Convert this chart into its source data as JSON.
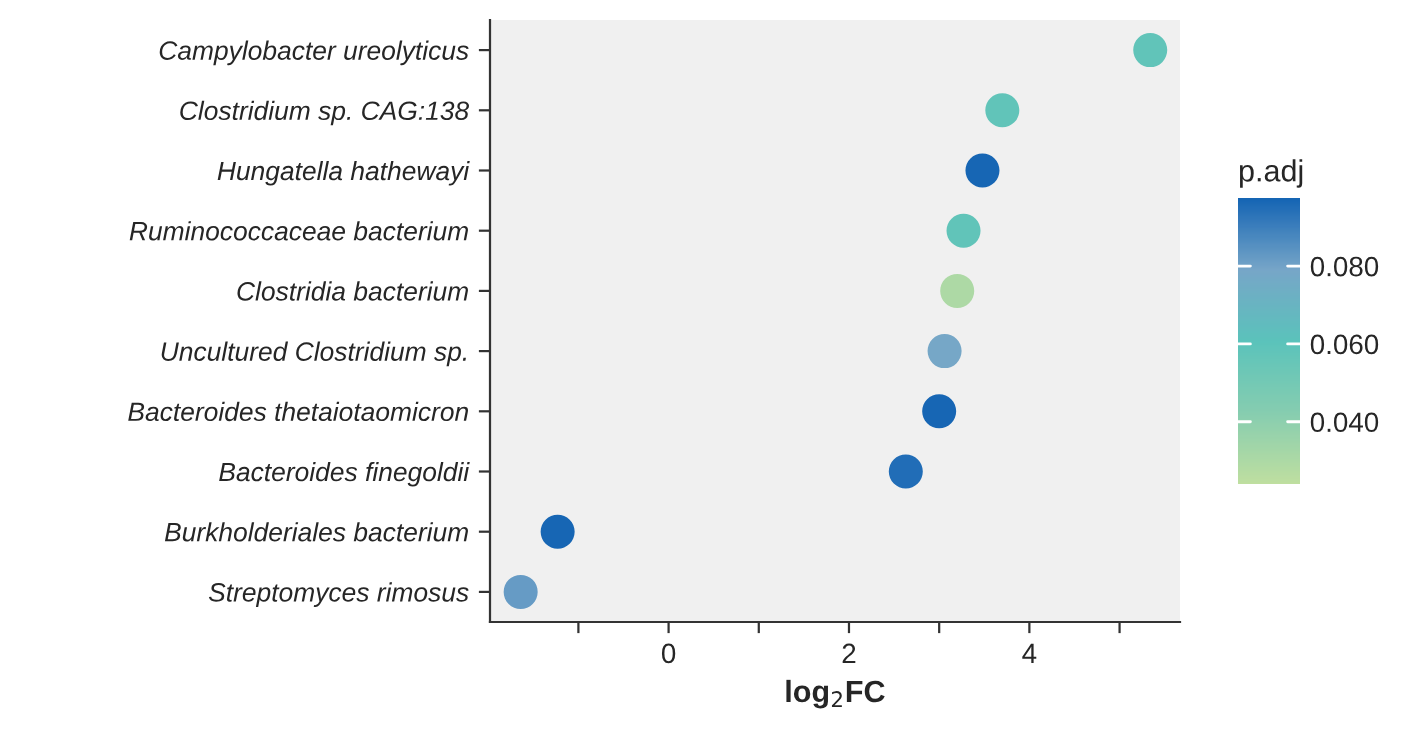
{
  "chart_data": {
    "type": "scatter",
    "xlabel": "log$_{2}$FC",
    "clabel": "p.adj",
    "categories": [
      "Campylobacter ureolyticus",
      "Clostridium sp. CAG:138",
      "Hungatella hathewayi",
      "Ruminococcaceae bacterium",
      "Clostridia bacterium",
      "Uncultured Clostridium sp.",
      "Bacteroides thetaiotaomicron",
      "Bacteroides finegoldii",
      "Burkholderiales bacterium",
      "Streptomyces rimosus"
    ],
    "orientation": "horizontal",
    "values": [
      5.34,
      3.7,
      3.48,
      3.27,
      3.2,
      3.06,
      3.0,
      2.63,
      -1.23,
      -1.64
    ],
    "cvalues": [
      0.058,
      0.058,
      0.097,
      0.058,
      0.03,
      0.078,
      0.097,
      0.095,
      0.097,
      0.082
    ],
    "clim": [
      0.024,
      0.0975
    ],
    "cticks": [
      {
        "value": 0.04,
        "label": "0.040"
      },
      {
        "value": 0.06,
        "label": "0.060"
      },
      {
        "value": 0.08,
        "label": "0.080"
      }
    ],
    "xlim": [
      -1.98,
      5.67
    ],
    "xticks": [
      {
        "value": -1,
        "label": null
      },
      0,
      {
        "value": 1,
        "label": null
      },
      2,
      {
        "value": 3,
        "label": null
      },
      4,
      {
        "value": 5,
        "label": null
      }
    ],
    "grid": false,
    "marker": "circle"
  }
}
